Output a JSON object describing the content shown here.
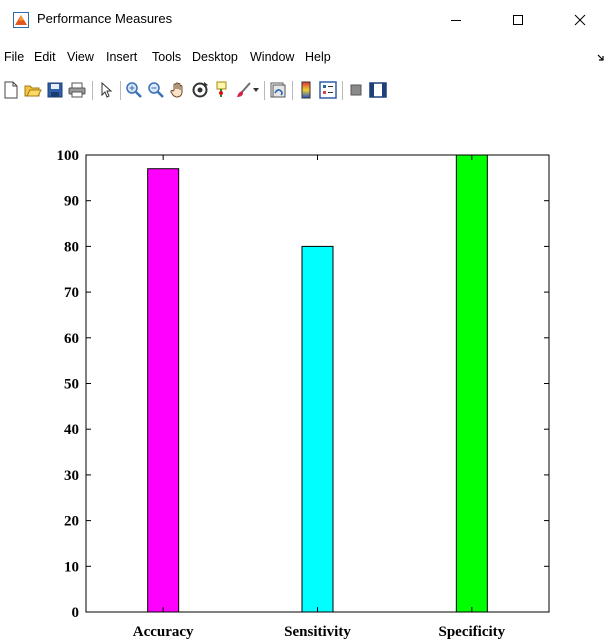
{
  "window": {
    "title": "Performance Measures",
    "minimize_glyph": "minimize-icon",
    "maximize_glyph": "maximize-icon",
    "close_glyph": "close-icon"
  },
  "menu": [
    "File",
    "Edit",
    "View",
    "Insert",
    "Tools",
    "Desktop",
    "Window",
    "Help"
  ],
  "toolbar": [
    "new-figure-icon",
    "open-file-icon",
    "save-icon",
    "print-icon",
    "pointer-icon",
    "zoom-in-icon",
    "zoom-out-icon",
    "pan-icon",
    "rotate-3d-icon",
    "data-cursor-icon",
    "brush-icon",
    "brush-dropdown-icon",
    "link-plot-icon",
    "colorbar-icon",
    "legend-icon",
    "hide-plot-tools-icon",
    "show-plot-tools-icon"
  ],
  "colors": {
    "accuracy": "#ff00ff",
    "sensitivity": "#00ffff",
    "specificity": "#00ff00"
  },
  "chart_data": {
    "type": "bar",
    "categories": [
      "Accuracy",
      "Sensitivity",
      "Specificity"
    ],
    "values": [
      97,
      80,
      100
    ],
    "colors": [
      "#ff00ff",
      "#00ffff",
      "#00ff00"
    ],
    "ylim": [
      0,
      100
    ],
    "yticks": [
      0,
      10,
      20,
      30,
      40,
      50,
      60,
      70,
      80,
      90,
      100
    ],
    "title": "",
    "xlabel": "",
    "ylabel": "",
    "grid": false,
    "legend": "none"
  }
}
